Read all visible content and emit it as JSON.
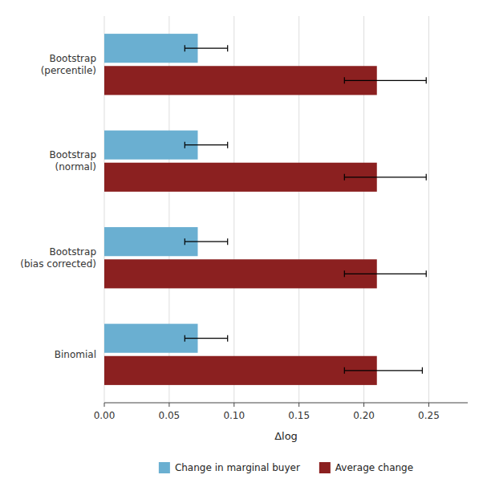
{
  "chart_data": {
    "type": "bar",
    "orientation": "horizontal",
    "categories": [
      "Bootstrap\n(percentile)",
      "Bootstrap\n(normal)",
      "Bootstrap\n(bias corrected)",
      "Binomial"
    ],
    "series": [
      {
        "name": "Change in marginal buyer",
        "color": "#6aafd1",
        "values": [
          0.072,
          0.072,
          0.072,
          0.072
        ],
        "error_low": [
          0.01,
          0.01,
          0.01,
          0.01
        ],
        "error_high": [
          0.023,
          0.023,
          0.023,
          0.023
        ]
      },
      {
        "name": "Average change",
        "color": "#8b2020",
        "values": [
          0.21,
          0.21,
          0.21,
          0.21
        ],
        "error_low": [
          0.025,
          0.025,
          0.025,
          0.025
        ],
        "error_high": [
          0.038,
          0.038,
          0.038,
          0.035
        ]
      }
    ],
    "xlabel": "Δlog",
    "xlim": [
      0.0,
      0.28
    ],
    "xticks": [
      {
        "value": 0.0,
        "label": "0.00"
      },
      {
        "value": 0.05,
        "label": "0.05"
      },
      {
        "value": 0.1,
        "label": "0.10"
      },
      {
        "value": 0.15,
        "label": "0.15"
      },
      {
        "value": 0.2,
        "label": "0.20"
      },
      {
        "value": 0.25,
        "label": "0.25"
      }
    ],
    "grid": true,
    "legend": "bottom"
  }
}
